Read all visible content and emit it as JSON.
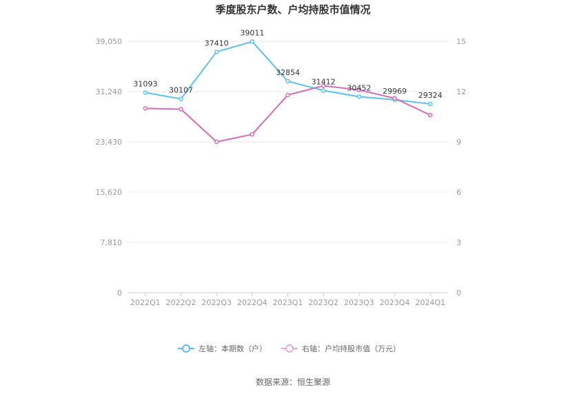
{
  "chart_data": {
    "type": "line",
    "title": "季度股东户数、户均持股市值情况",
    "categories": [
      "2022Q1",
      "2022Q2",
      "2022Q3",
      "2022Q4",
      "2023Q1",
      "2023Q2",
      "2023Q3",
      "2023Q4",
      "2024Q1"
    ],
    "left_axis": {
      "min": 0,
      "max": 39050,
      "ticks": [
        "0",
        "7,810",
        "15,620",
        "23,430",
        "31,240",
        "39,050"
      ]
    },
    "right_axis": {
      "min": 0,
      "max": 15,
      "ticks": [
        "0",
        "3",
        "6",
        "9",
        "12",
        "15"
      ]
    },
    "series": [
      {
        "name": "左轴：本期数（户）",
        "axis": "left",
        "color": "#5bc0f0",
        "values": [
          31093,
          30107,
          37410,
          39011,
          32854,
          31412,
          30452,
          29969,
          29324
        ],
        "labels": [
          "31093",
          "30107",
          "37410",
          "39011",
          "32854",
          "31412",
          "30452",
          "29969",
          "29324"
        ]
      },
      {
        "name": "右轴：户均持股市值（万元）",
        "axis": "right",
        "color": "#d76cb3",
        "values": [
          11.0,
          10.95,
          9.0,
          9.45,
          11.8,
          12.35,
          12.1,
          11.6,
          10.6
        ]
      }
    ],
    "grid": true,
    "legend_position": "bottom"
  },
  "source": "数据来源：恒生聚源"
}
